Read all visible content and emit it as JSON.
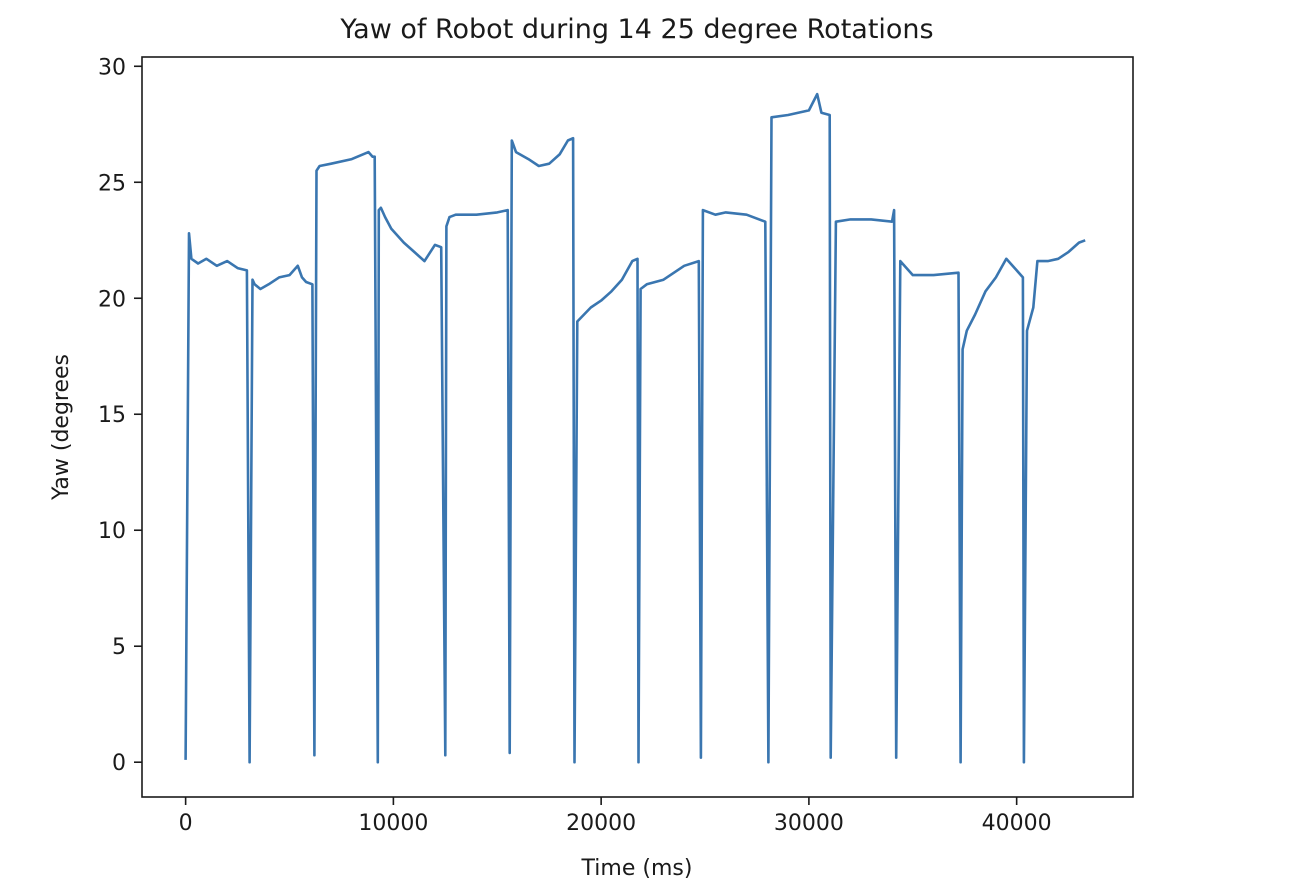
{
  "chart_data": {
    "type": "line",
    "title": "Yaw of Robot during 14 25 degree Rotations",
    "xlabel": "Time (ms)",
    "ylabel": "Yaw (degrees",
    "xlim": [
      -2100,
      45600
    ],
    "ylim": [
      -1.5,
      30.4
    ],
    "xticks": [
      0,
      10000,
      20000,
      30000,
      40000
    ],
    "yticks": [
      0,
      5,
      10,
      15,
      20,
      25,
      30
    ],
    "grid": false,
    "series_color": "#3a76b0",
    "series": [
      {
        "x": [
          0,
          160,
          280,
          600,
          1000,
          1500,
          2000,
          2500,
          2950,
          3080,
          3220,
          3320,
          3600,
          4000,
          4500,
          5000,
          5400,
          5600,
          5800,
          6100,
          6200,
          6300,
          6450,
          7000,
          8000,
          8800,
          9000,
          9100,
          9250,
          9300,
          9400,
          9600,
          9900,
          10500,
          11000,
          11500,
          12000,
          12300,
          12500,
          12550,
          12700,
          13000,
          14000,
          15000,
          15500,
          15600,
          15700,
          15900,
          16500,
          17000,
          17500,
          18000,
          18400,
          18650,
          18720,
          18850,
          19500,
          20000,
          20500,
          21000,
          21500,
          21750,
          21800,
          21900,
          22200,
          23000,
          24000,
          24700,
          24800,
          24900,
          25500,
          26000,
          27000,
          27900,
          28050,
          28200,
          29000,
          30000,
          30400,
          30600,
          31000,
          31050,
          31300,
          32000,
          33000,
          34000,
          34100,
          34200,
          34400,
          35000,
          36000,
          37200,
          37300,
          37400,
          37600,
          38000,
          38500,
          39000,
          39500,
          40000,
          40300,
          40350,
          40500,
          40800,
          41000,
          41500,
          42000,
          42500,
          43000,
          43300
        ],
        "y": [
          0.1,
          22.8,
          21.7,
          21.5,
          21.7,
          21.4,
          21.6,
          21.3,
          21.2,
          0.0,
          20.8,
          20.6,
          20.4,
          20.6,
          20.9,
          21.0,
          21.4,
          20.9,
          20.7,
          20.6,
          0.3,
          25.5,
          25.7,
          25.8,
          26.0,
          26.3,
          26.1,
          26.1,
          0.0,
          23.8,
          23.9,
          23.5,
          23.0,
          22.4,
          22.0,
          21.6,
          22.3,
          22.2,
          0.3,
          23.1,
          23.5,
          23.6,
          23.6,
          23.7,
          23.8,
          0.4,
          26.8,
          26.3,
          26.0,
          25.7,
          25.8,
          26.2,
          26.8,
          26.9,
          0.0,
          19.0,
          19.6,
          19.9,
          20.3,
          20.8,
          21.6,
          21.7,
          0.0,
          20.4,
          20.6,
          20.8,
          21.4,
          21.6,
          0.2,
          23.8,
          23.6,
          23.7,
          23.6,
          23.3,
          0.0,
          27.8,
          27.9,
          28.1,
          28.8,
          28.0,
          27.9,
          0.2,
          23.3,
          23.4,
          23.4,
          23.3,
          23.8,
          0.2,
          21.6,
          21.0,
          21.0,
          21.1,
          0.0,
          17.8,
          18.6,
          19.3,
          20.3,
          20.9,
          21.7,
          21.2,
          20.9,
          0.0,
          18.6,
          19.6,
          21.6,
          21.6,
          21.7,
          22.0,
          22.4,
          22.5
        ]
      }
    ]
  }
}
